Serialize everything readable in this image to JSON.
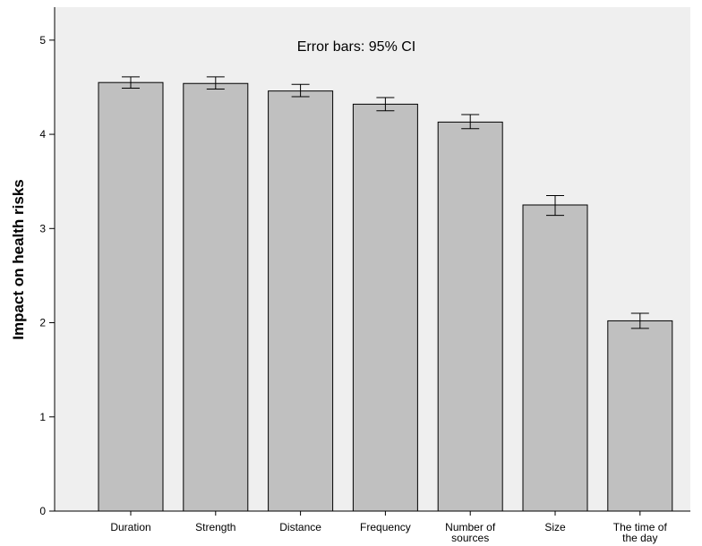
{
  "chart_data": {
    "type": "bar",
    "title": "",
    "xlabel": "",
    "ylabel": "Impact on health risks",
    "annotation": "Error bars: 95% CI",
    "categories": [
      "Duration",
      "Strength",
      "Distance",
      "Frequency",
      "Number of sources",
      "Size",
      "The time of the day"
    ],
    "category_lines": [
      [
        "Duration"
      ],
      [
        "Strength"
      ],
      [
        "Distance"
      ],
      [
        "Frequency"
      ],
      [
        "Number of",
        "sources"
      ],
      [
        "Size"
      ],
      [
        "The time of",
        "the day"
      ]
    ],
    "values": [
      4.55,
      4.54,
      4.46,
      4.32,
      4.13,
      3.25,
      2.02
    ],
    "ci_lower": [
      4.49,
      4.48,
      4.4,
      4.25,
      4.06,
      3.14,
      1.94
    ],
    "ci_upper": [
      4.61,
      4.61,
      4.53,
      4.39,
      4.21,
      3.35,
      2.1
    ],
    "ylim": [
      0,
      5.35
    ],
    "yticks": [
      0,
      1,
      2,
      3,
      4,
      5
    ],
    "grid": false,
    "colors": {
      "plot_background": "#efefef",
      "bar_fill": "#c0c0c0",
      "bar_stroke": "#000000"
    }
  }
}
